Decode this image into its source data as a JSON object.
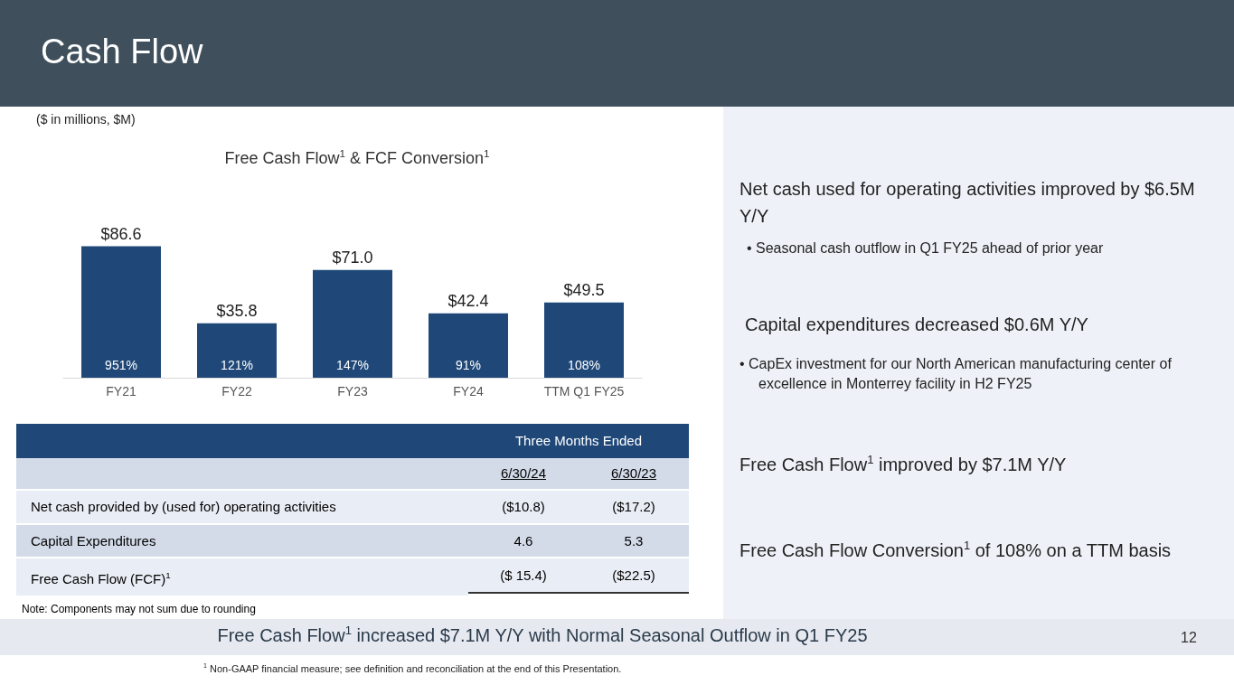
{
  "chart_data": {
    "type": "bar",
    "title": "Cash Flow",
    "subtitle": "($ in millions, $M)",
    "categories": [
      "FY21",
      "FY22",
      "FY23",
      "FY24",
      "TTM Q1 FY25"
    ],
    "values": [
      86.6,
      35.8,
      71.0,
      42.4,
      49.5
    ],
    "value_labels": [
      "$86.6",
      "$35.8",
      "$71.0",
      "$42.4",
      "$49.5"
    ],
    "color": "#1f4879",
    "annotations": [
      "Free Cash Flow$^{1}$ & FCF Conversion$^{1}$",
      "Three Months Ended",
      "6/30/24",
      "6/30/23",
      "Net cash provided by (used for) operating activities",
      "($10.8)",
      "($17.2)",
      "Capital Expenditures",
      "4.6",
      "5.3",
      "Free Cash Flow (FCF)$^{1}$",
      "($ 15.4)",
      "($22.5)",
      "Note: Components may not sum due to rounding",
      "Net cash used for operating activities improved by $6.5M Y/Y",
      "• Seasonal cash outflow in Q1 FY25 ahead of prior year",
      "Capital expenditures decreased $0.6M Y/Y",
      "• CapEx investment for our North American manufacturing center of excellence in Monterrey facility in H2 FY25",
      "Free Cash Flow$^{1}$ improved by $7.1M Y/Y",
      "Free Cash Flow Conversion$^{1}$ of 108% on a TTM basis",
      "Free Cash Flow$^{1}$ increased $7.1M Y/Y with Normal Seasonal Outflow in Q1 FY25",
      "12",
      "$^{1}$ Non-GAAP financial measure; see definition and reconciliation at the end of this Presentation.",
      {
        "text": "951%",
        "x": "FY21",
        "y": 0
      },
      {
        "text": "121%",
        "x": "FY22",
        "y": 0
      },
      {
        "text": "147%",
        "x": "FY23",
        "y": 0
      },
      {
        "text": "91%",
        "x": "FY24",
        "y": 0
      },
      {
        "text": "108%",
        "x": "TTM Q1 FY25",
        "y": 0
      }
    ]
  }
}
